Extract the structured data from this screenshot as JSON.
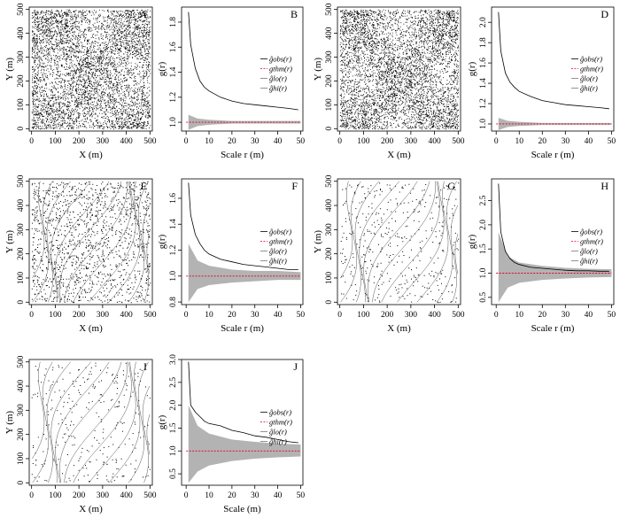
{
  "figure": {
    "panels": [
      {
        "letter": "A",
        "kind": "map",
        "intensity": "dense",
        "xlabel": "X (m)",
        "ylabel": "Y (m)",
        "xticks": [
          "0",
          "100",
          "200",
          "300",
          "400",
          "500"
        ],
        "yticks": [
          "0",
          "100",
          "200",
          "300",
          "400",
          "500"
        ]
      },
      {
        "letter": "B",
        "kind": "g",
        "xlabel": "Scale r (m)",
        "ylabel": "g(r)",
        "env": 0.04,
        "ylim": [
          0.93,
          1.92
        ],
        "xticks": [
          "0",
          "10",
          "20",
          "30",
          "40",
          "50"
        ],
        "yticks": [
          "1.0",
          "1.2",
          "1.4",
          "1.6",
          "1.8"
        ],
        "legend": [
          "ĝobs(r)",
          "gthm(r)",
          "ĝlo(r)",
          "ĝhi(r)"
        ]
      },
      {
        "letter": "C",
        "kind": "map",
        "intensity": "dense",
        "xlabel": "X (m)",
        "ylabel": "Y (m)",
        "xticks": [
          "0",
          "100",
          "200",
          "300",
          "400",
          "500"
        ],
        "yticks": [
          "0",
          "100",
          "200",
          "300",
          "400",
          "500"
        ]
      },
      {
        "letter": "D",
        "kind": "g",
        "xlabel": "Scale r (m)",
        "ylabel": "g(r)",
        "env": 0.04,
        "ylim": [
          0.93,
          2.15
        ],
        "xticks": [
          "0",
          "10",
          "20",
          "30",
          "40",
          "50"
        ],
        "yticks": [
          "1.0",
          "1.2",
          "1.4",
          "1.6",
          "1.8",
          "2.0"
        ],
        "legend": [
          "ĝobs(r)",
          "gthm(r)",
          "ĝlo(r)",
          "ĝhi(r)"
        ]
      },
      {
        "letter": "E",
        "kind": "map",
        "intensity": "medium",
        "xlabel": "X (m)",
        "ylabel": "Y (m)",
        "xticks": [
          "0",
          "100",
          "200",
          "300",
          "400",
          "500"
        ],
        "yticks": [
          "0",
          "100",
          "200",
          "300",
          "400",
          "500"
        ]
      },
      {
        "letter": "F",
        "kind": "g",
        "xlabel": "Scale r (m)",
        "ylabel": "g(r)",
        "env": 0.24,
        "ylim": [
          0.78,
          1.75
        ],
        "xticks": [
          "0",
          "10",
          "20",
          "30",
          "40",
          "50"
        ],
        "yticks": [
          "0.8",
          "1.0",
          "1.2",
          "1.4",
          "1.6"
        ],
        "legend": [
          "ĝobs(r)",
          "gthm(r)",
          "ĝlo(r)",
          "ĝhi(r)"
        ]
      },
      {
        "letter": "G",
        "kind": "map",
        "intensity": "sparse",
        "xlabel": "X (m)",
        "ylabel": "Y (m)",
        "xticks": [
          "0",
          "100",
          "200",
          "300",
          "400",
          "500"
        ],
        "yticks": [
          "0",
          "100",
          "200",
          "300",
          "400",
          "500"
        ]
      },
      {
        "letter": "H",
        "kind": "g",
        "xlabel": "Scale r (m)",
        "ylabel": "g(r)",
        "env": 0.9,
        "ylim": [
          0.35,
          2.95
        ],
        "xticks": [
          "0",
          "10",
          "20",
          "30",
          "40",
          "50"
        ],
        "yticks": [
          "0.5",
          "1.0",
          "1.5",
          "2.0",
          "2.5"
        ],
        "legend": [
          "ĝobs(r)",
          "gthm(r)",
          "ĝlo(r)",
          "ĝhi(r)"
        ]
      },
      {
        "letter": "I",
        "kind": "map",
        "intensity": "sparser",
        "xlabel": "X (m)",
        "ylabel": "Y (m)",
        "xticks": [
          "0",
          "100",
          "200",
          "300",
          "400",
          "500"
        ],
        "yticks": [
          "0",
          "100",
          "200",
          "300",
          "400",
          "500"
        ]
      },
      {
        "letter": "J",
        "kind": "g",
        "xlabel": "Scale (m)",
        "ylabel": "g(r)",
        "env": 0.72,
        "ylim": [
          0.25,
          3.0
        ],
        "xticks": [
          "0",
          "10",
          "20",
          "30",
          "40",
          "50"
        ],
        "yticks": [
          "0.5",
          "1.0",
          "1.5",
          "2.0",
          "2.5",
          "3.0"
        ],
        "legend": [
          "ĝobs(r)",
          "gthm(r)",
          "ĝlo(r)",
          "ĝhi(r)"
        ]
      }
    ]
  },
  "chart_data": [
    {
      "type": "scatter",
      "panel": "A",
      "xlabel": "X (m)",
      "ylabel": "Y (m)",
      "xlim": [
        0,
        500
      ],
      "ylim": [
        0,
        500
      ]
    },
    {
      "type": "line",
      "panel": "B",
      "xlabel": "Scale r (m)",
      "ylabel": "g(r)",
      "xlim": [
        0,
        50
      ],
      "series": [
        {
          "name": "ĝobs(r)",
          "x": [
            1,
            2,
            4,
            6,
            8,
            10,
            15,
            20,
            25,
            30,
            35,
            40,
            45,
            49
          ],
          "y": [
            1.88,
            1.62,
            1.43,
            1.33,
            1.28,
            1.25,
            1.2,
            1.17,
            1.15,
            1.14,
            1.13,
            1.12,
            1.11,
            1.1
          ]
        },
        {
          "name": "gthm(r)",
          "x": [
            0,
            50
          ],
          "y": [
            1.0,
            1.0
          ]
        },
        {
          "name": "ĝlo(r)",
          "x": [
            1,
            5,
            10,
            20,
            30,
            40,
            50
          ],
          "y": [
            0.94,
            0.97,
            0.98,
            0.99,
            0.99,
            0.99,
            0.99
          ]
        },
        {
          "name": "ĝhi(r)",
          "x": [
            1,
            5,
            10,
            20,
            30,
            40,
            50
          ],
          "y": [
            1.06,
            1.03,
            1.02,
            1.01,
            1.01,
            1.01,
            1.01
          ]
        }
      ]
    },
    {
      "type": "scatter",
      "panel": "C",
      "xlabel": "X (m)",
      "ylabel": "Y (m)",
      "xlim": [
        0,
        500
      ],
      "ylim": [
        0,
        500
      ]
    },
    {
      "type": "line",
      "panel": "D",
      "xlabel": "Scale r (m)",
      "ylabel": "g(r)",
      "xlim": [
        0,
        50
      ],
      "series": [
        {
          "name": "ĝobs(r)",
          "x": [
            1,
            2,
            4,
            6,
            8,
            10,
            15,
            20,
            25,
            30,
            35,
            40,
            45,
            49
          ],
          "y": [
            2.1,
            1.72,
            1.5,
            1.41,
            1.36,
            1.32,
            1.27,
            1.23,
            1.21,
            1.19,
            1.18,
            1.17,
            1.16,
            1.15
          ]
        },
        {
          "name": "gthm(r)",
          "x": [
            0,
            50
          ],
          "y": [
            1.0,
            1.0
          ]
        },
        {
          "name": "ĝlo(r)",
          "x": [
            1,
            5,
            10,
            20,
            30,
            40,
            50
          ],
          "y": [
            0.94,
            0.97,
            0.98,
            0.99,
            0.99,
            0.99,
            0.99
          ]
        },
        {
          "name": "ĝhi(r)",
          "x": [
            1,
            5,
            10,
            20,
            30,
            40,
            50
          ],
          "y": [
            1.06,
            1.03,
            1.02,
            1.01,
            1.01,
            1.01,
            1.01
          ]
        }
      ]
    },
    {
      "type": "scatter",
      "panel": "E",
      "xlabel": "X (m)",
      "ylabel": "Y (m)",
      "xlim": [
        0,
        500
      ],
      "ylim": [
        0,
        500
      ]
    },
    {
      "type": "line",
      "panel": "F",
      "xlabel": "Scale r (m)",
      "ylabel": "g(r)",
      "xlim": [
        0,
        50
      ],
      "series": [
        {
          "name": "ĝobs(r)",
          "x": [
            1,
            2,
            4,
            6,
            8,
            10,
            15,
            20,
            25,
            30,
            35,
            40,
            45,
            49
          ],
          "y": [
            1.72,
            1.47,
            1.32,
            1.25,
            1.2,
            1.17,
            1.13,
            1.11,
            1.09,
            1.08,
            1.07,
            1.06,
            1.05,
            1.05
          ]
        },
        {
          "name": "gthm(r)",
          "x": [
            0,
            50
          ],
          "y": [
            1.0,
            1.0
          ]
        },
        {
          "name": "ĝlo(r)",
          "x": [
            1,
            5,
            10,
            20,
            30,
            40,
            50
          ],
          "y": [
            0.8,
            0.9,
            0.93,
            0.95,
            0.96,
            0.97,
            0.97
          ]
        },
        {
          "name": "ĝhi(r)",
          "x": [
            1,
            5,
            10,
            20,
            30,
            40,
            50
          ],
          "y": [
            1.25,
            1.12,
            1.08,
            1.05,
            1.04,
            1.04,
            1.03
          ]
        }
      ]
    },
    {
      "type": "scatter",
      "panel": "G",
      "xlabel": "X (m)",
      "ylabel": "Y (m)",
      "xlim": [
        0,
        500
      ],
      "ylim": [
        0,
        500
      ]
    },
    {
      "type": "line",
      "panel": "H",
      "xlabel": "Scale r (m)",
      "ylabel": "g(r)",
      "xlim": [
        0,
        50
      ],
      "series": [
        {
          "name": "ĝobs(r)",
          "x": [
            1,
            2,
            4,
            6,
            8,
            10,
            15,
            20,
            25,
            30,
            35,
            40,
            45,
            49
          ],
          "y": [
            2.85,
            1.85,
            1.45,
            1.3,
            1.22,
            1.18,
            1.12,
            1.1,
            1.08,
            1.06,
            1.05,
            1.05,
            1.04,
            1.04
          ]
        },
        {
          "name": "gthm(r)",
          "x": [
            0,
            50
          ],
          "y": [
            1.0,
            1.0
          ]
        },
        {
          "name": "ĝlo(r)",
          "x": [
            1,
            5,
            10,
            20,
            30,
            40,
            50
          ],
          "y": [
            0.4,
            0.7,
            0.8,
            0.86,
            0.89,
            0.91,
            0.92
          ]
        },
        {
          "name": "ĝhi(r)",
          "x": [
            1,
            5,
            10,
            20,
            30,
            40,
            50
          ],
          "y": [
            1.85,
            1.35,
            1.22,
            1.15,
            1.11,
            1.09,
            1.08
          ]
        }
      ]
    },
    {
      "type": "scatter",
      "panel": "I",
      "xlabel": "X (m)",
      "ylabel": "Y (m)",
      "xlim": [
        0,
        500
      ],
      "ylim": [
        0,
        500
      ]
    },
    {
      "type": "line",
      "panel": "J",
      "xlabel": "Scale (m)",
      "ylabel": "g(r)",
      "xlim": [
        0,
        50
      ],
      "series": [
        {
          "name": "ĝobs(r)",
          "x": [
            1,
            2,
            4,
            6,
            8,
            10,
            15,
            20,
            25,
            30,
            35,
            40,
            45,
            49
          ],
          "y": [
            2.95,
            2.0,
            1.85,
            1.75,
            1.65,
            1.6,
            1.55,
            1.45,
            1.4,
            1.33,
            1.3,
            1.25,
            1.2,
            1.18
          ]
        },
        {
          "name": "gthm(r)",
          "x": [
            0,
            50
          ],
          "y": [
            1.0,
            1.0
          ]
        },
        {
          "name": "ĝlo(r)",
          "x": [
            1,
            5,
            10,
            20,
            30,
            40,
            50
          ],
          "y": [
            0.3,
            0.55,
            0.68,
            0.78,
            0.83,
            0.86,
            0.88
          ]
        },
        {
          "name": "ĝhi(r)",
          "x": [
            1,
            5,
            10,
            20,
            30,
            40,
            50
          ],
          "y": [
            2.0,
            1.55,
            1.38,
            1.25,
            1.2,
            1.16,
            1.14
          ]
        }
      ]
    }
  ],
  "colors": {
    "axis": "#000000",
    "data": "#000000",
    "envelope": "#b3b3b3",
    "theory": "#e0002a",
    "contour": "#444444"
  }
}
